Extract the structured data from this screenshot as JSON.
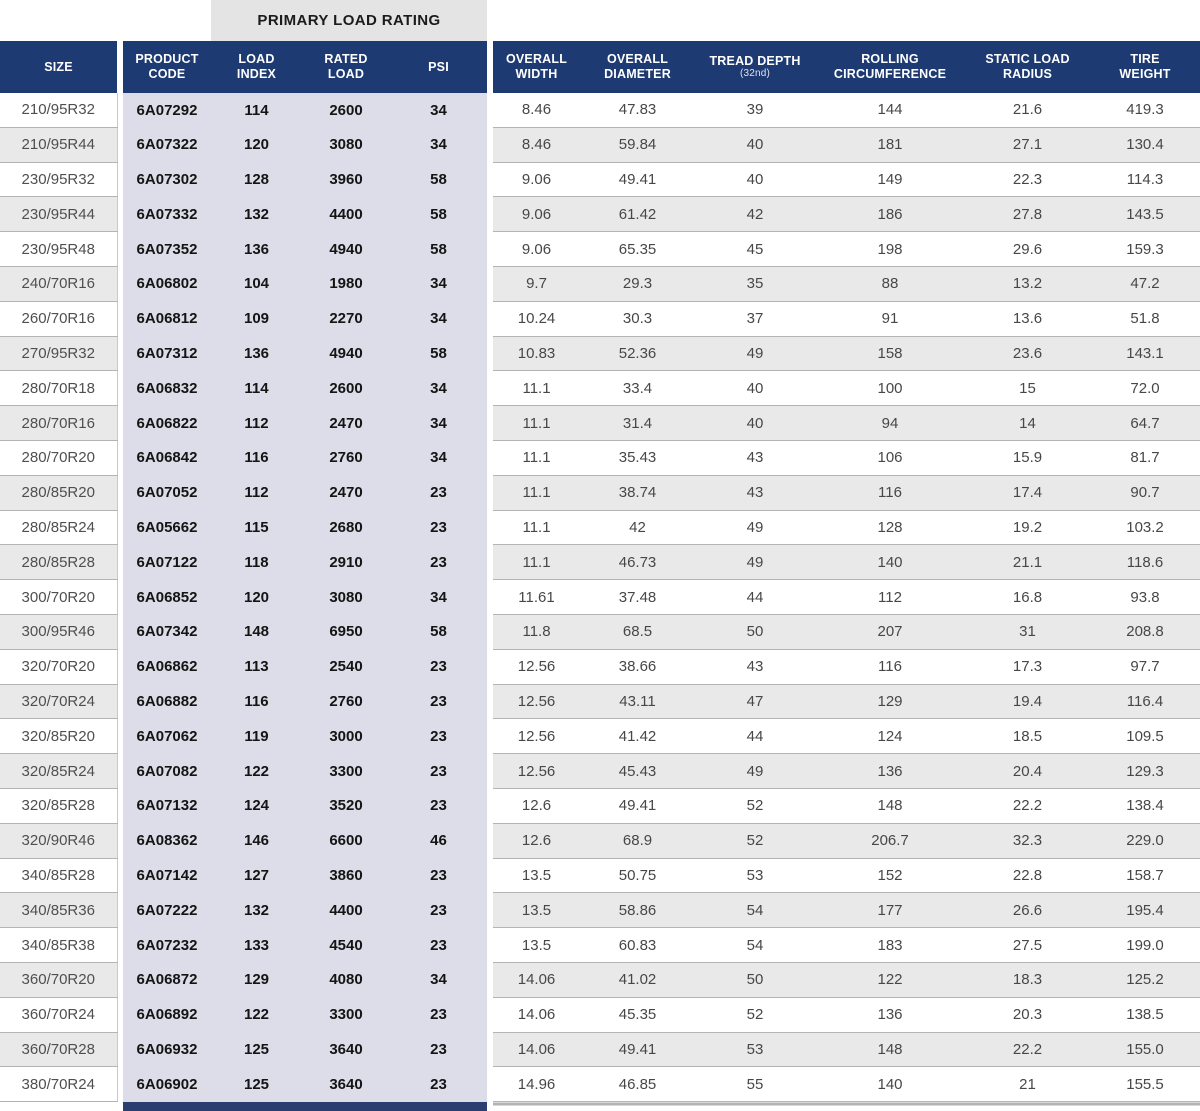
{
  "table": {
    "group_header": "PRIMARY LOAD RATING",
    "columns": [
      {
        "id": "size",
        "lines": [
          "SIZE"
        ]
      },
      {
        "id": "product_code",
        "lines": [
          "PRODUCT",
          "CODE"
        ]
      },
      {
        "id": "load_index",
        "lines": [
          "LOAD",
          "INDEX"
        ]
      },
      {
        "id": "rated_load",
        "lines": [
          "RATED",
          "LOAD"
        ]
      },
      {
        "id": "psi",
        "lines": [
          "PSI"
        ]
      },
      {
        "id": "overall_width",
        "lines": [
          "OVERALL",
          "WIDTH"
        ]
      },
      {
        "id": "overall_diameter",
        "lines": [
          "OVERALL",
          "DIAMETER"
        ]
      },
      {
        "id": "tread_depth",
        "lines": [
          "TREAD DEPTH"
        ],
        "sub": "(32nd)"
      },
      {
        "id": "rolling_circumference",
        "lines": [
          "ROLLING",
          "CIRCUMFERENCE"
        ]
      },
      {
        "id": "static_load_radius",
        "lines": [
          "STATIC LOAD",
          "RADIUS"
        ]
      },
      {
        "id": "tire_weight",
        "lines": [
          "TIRE",
          "WEIGHT"
        ]
      }
    ],
    "rows": [
      [
        "210/95R32",
        "6A07292",
        "114",
        "2600",
        "34",
        "8.46",
        "47.83",
        "39",
        "144",
        "21.6",
        "419.3"
      ],
      [
        "210/95R44",
        "6A07322",
        "120",
        "3080",
        "34",
        "8.46",
        "59.84",
        "40",
        "181",
        "27.1",
        "130.4"
      ],
      [
        "230/95R32",
        "6A07302",
        "128",
        "3960",
        "58",
        "9.06",
        "49.41",
        "40",
        "149",
        "22.3",
        "114.3"
      ],
      [
        "230/95R44",
        "6A07332",
        "132",
        "4400",
        "58",
        "9.06",
        "61.42",
        "42",
        "186",
        "27.8",
        "143.5"
      ],
      [
        "230/95R48",
        "6A07352",
        "136",
        "4940",
        "58",
        "9.06",
        "65.35",
        "45",
        "198",
        "29.6",
        "159.3"
      ],
      [
        "240/70R16",
        "6A06802",
        "104",
        "1980",
        "34",
        "9.7",
        "29.3",
        "35",
        "88",
        "13.2",
        "47.2"
      ],
      [
        "260/70R16",
        "6A06812",
        "109",
        "2270",
        "34",
        "10.24",
        "30.3",
        "37",
        "91",
        "13.6",
        "51.8"
      ],
      [
        "270/95R32",
        "6A07312",
        "136",
        "4940",
        "58",
        "10.83",
        "52.36",
        "49",
        "158",
        "23.6",
        "143.1"
      ],
      [
        "280/70R18",
        "6A06832",
        "114",
        "2600",
        "34",
        "11.1",
        "33.4",
        "40",
        "100",
        "15",
        "72.0"
      ],
      [
        "280/70R16",
        "6A06822",
        "112",
        "2470",
        "34",
        "11.1",
        "31.4",
        "40",
        "94",
        "14",
        "64.7"
      ],
      [
        "280/70R20",
        "6A06842",
        "116",
        "2760",
        "34",
        "11.1",
        "35.43",
        "43",
        "106",
        "15.9",
        "81.7"
      ],
      [
        "280/85R20",
        "6A07052",
        "112",
        "2470",
        "23",
        "11.1",
        "38.74",
        "43",
        "116",
        "17.4",
        "90.7"
      ],
      [
        "280/85R24",
        "6A05662",
        "115",
        "2680",
        "23",
        "11.1",
        "42",
        "49",
        "128",
        "19.2",
        "103.2"
      ],
      [
        "280/85R28",
        "6A07122",
        "118",
        "2910",
        "23",
        "11.1",
        "46.73",
        "49",
        "140",
        "21.1",
        "118.6"
      ],
      [
        "300/70R20",
        "6A06852",
        "120",
        "3080",
        "34",
        "11.61",
        "37.48",
        "44",
        "112",
        "16.8",
        "93.8"
      ],
      [
        "300/95R46",
        "6A07342",
        "148",
        "6950",
        "58",
        "11.8",
        "68.5",
        "50",
        "207",
        "31",
        "208.8"
      ],
      [
        "320/70R20",
        "6A06862",
        "113",
        "2540",
        "23",
        "12.56",
        "38.66",
        "43",
        "116",
        "17.3",
        "97.7"
      ],
      [
        "320/70R24",
        "6A06882",
        "116",
        "2760",
        "23",
        "12.56",
        "43.11",
        "47",
        "129",
        "19.4",
        "116.4"
      ],
      [
        "320/85R20",
        "6A07062",
        "119",
        "3000",
        "23",
        "12.56",
        "41.42",
        "44",
        "124",
        "18.5",
        "109.5"
      ],
      [
        "320/85R24",
        "6A07082",
        "122",
        "3300",
        "23",
        "12.56",
        "45.43",
        "49",
        "136",
        "20.4",
        "129.3"
      ],
      [
        "320/85R28",
        "6A07132",
        "124",
        "3520",
        "23",
        "12.6",
        "49.41",
        "52",
        "148",
        "22.2",
        "138.4"
      ],
      [
        "320/90R46",
        "6A08362",
        "146",
        "6600",
        "46",
        "12.6",
        "68.9",
        "52",
        "206.7",
        "32.3",
        "229.0"
      ],
      [
        "340/85R28",
        "6A07142",
        "127",
        "3860",
        "23",
        "13.5",
        "50.75",
        "53",
        "152",
        "22.8",
        "158.7"
      ],
      [
        "340/85R36",
        "6A07222",
        "132",
        "4400",
        "23",
        "13.5",
        "58.86",
        "54",
        "177",
        "26.6",
        "195.4"
      ],
      [
        "340/85R38",
        "6A07232",
        "133",
        "4540",
        "23",
        "13.5",
        "60.83",
        "54",
        "183",
        "27.5",
        "199.0"
      ],
      [
        "360/70R20",
        "6A06872",
        "129",
        "4080",
        "34",
        "14.06",
        "41.02",
        "50",
        "122",
        "18.3",
        "125.2"
      ],
      [
        "360/70R24",
        "6A06892",
        "122",
        "3300",
        "23",
        "14.06",
        "45.35",
        "52",
        "136",
        "20.3",
        "138.5"
      ],
      [
        "360/70R28",
        "6A06932",
        "125",
        "3640",
        "23",
        "14.06",
        "49.41",
        "53",
        "148",
        "22.2",
        "155.0"
      ],
      [
        "380/70R24",
        "6A06902",
        "125",
        "3640",
        "23",
        "14.96",
        "46.85",
        "55",
        "140",
        "21",
        "155.5"
      ]
    ],
    "colors": {
      "header_navy": "#1e3a72",
      "group_band_gray": "#e4e4e4",
      "load_rating_lavender": "#dddde9",
      "alt_row_gray": "#e9e9e9",
      "footer_bar_navy": "#2a3f6f"
    }
  }
}
